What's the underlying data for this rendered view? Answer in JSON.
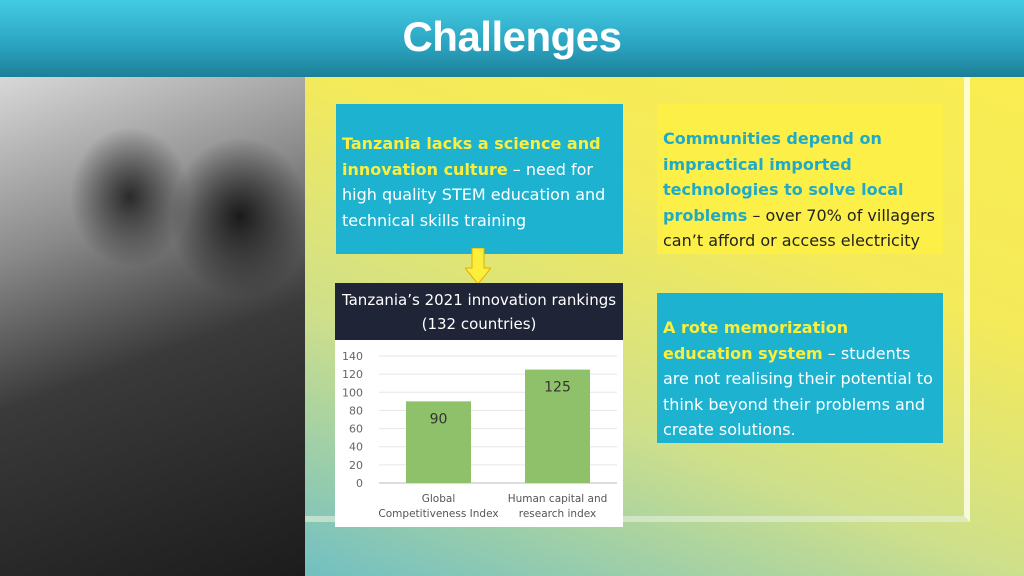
{
  "header": {
    "title": "Challenges"
  },
  "boxes": [
    {
      "bold": "Tanzania lacks a science and innovation culture",
      "rest": " – need for high quality STEM education and technical skills training"
    },
    {
      "bold": "Communities depend on impractical imported technologies to solve local problems",
      "rest": " – over 70% of villagers can’t afford or access electricity"
    },
    {
      "bold": "A rote memorization education system",
      "rest": " – students are not realising their potential to think beyond their problems and create solutions."
    }
  ],
  "colors": {
    "teal": "#1db3d0",
    "yellow": "#fcef48",
    "bar": "#8fc06a",
    "dark": "#1f2436"
  },
  "chart_data": {
    "type": "bar",
    "title": "Tanzania’s 2021 innovation rankings (132 countries)",
    "title_lines": [
      "Tanzania’s 2021 innovation rankings",
      "(132 countries)"
    ],
    "categories": [
      [
        "Global",
        "Competitiveness  Index"
      ],
      [
        "Human capital and",
        "research  index"
      ]
    ],
    "values": [
      90,
      125
    ],
    "ylim": [
      0,
      140
    ],
    "yticks": [
      0,
      20,
      40,
      60,
      80,
      100,
      120,
      140
    ],
    "grid": true
  }
}
